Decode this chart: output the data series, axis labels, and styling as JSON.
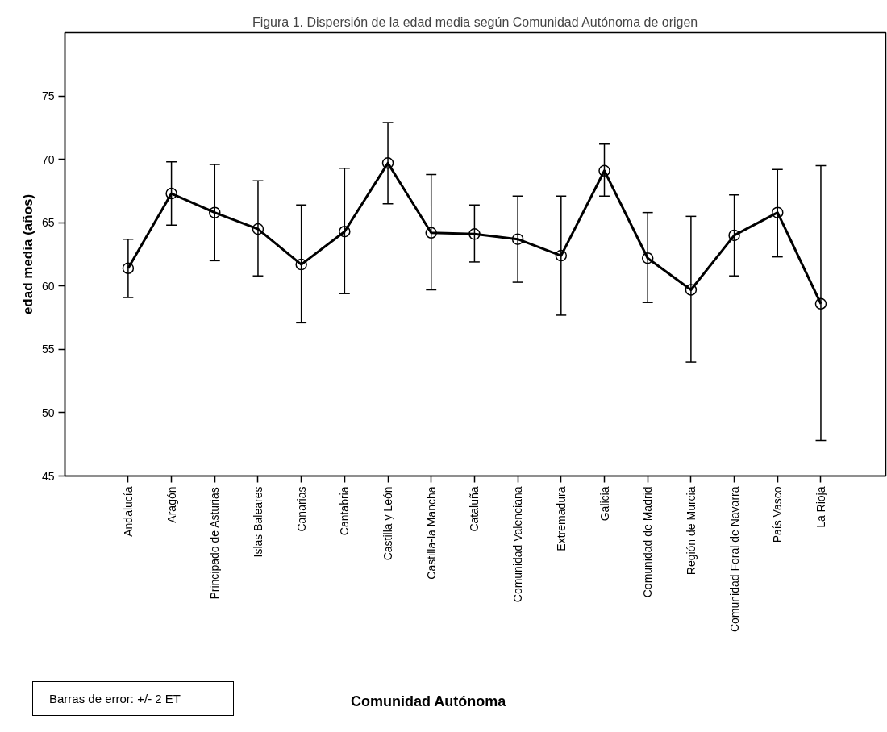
{
  "chart_data": {
    "type": "line",
    "title": "Figura 1. Dispersión de la edad media según Comunidad Autónoma de origen",
    "xlabel": "Comunidad Autónoma",
    "ylabel": "edad media (años)",
    "categories": [
      "Andalucía",
      "Aragón",
      "Principado de Asturias",
      "Islas Baleares",
      "Canarias",
      "Cantabria",
      "Castilla y León",
      "Castilla-la Mancha",
      "Cataluña",
      "Comunidad Valenciana",
      "Extremadura",
      "Galicia",
      "Comunidad de Madrid",
      "Región de Murcia",
      "Comunidad Foral de Navarra",
      "País Vasco",
      "La Rioja"
    ],
    "series": [
      {
        "color": "#000000",
        "values": [
          61.4,
          67.3,
          65.8,
          64.5,
          61.7,
          64.3,
          69.7,
          64.2,
          64.1,
          63.7,
          62.4,
          69.1,
          62.2,
          59.7,
          64.0,
          65.8,
          58.6
        ],
        "errors": [
          [
            59.1,
            63.7
          ],
          [
            64.8,
            69.8
          ],
          [
            62.0,
            69.6
          ],
          [
            60.8,
            68.3
          ],
          [
            57.1,
            66.4
          ],
          [
            59.4,
            69.3
          ],
          [
            66.5,
            72.9
          ],
          [
            59.7,
            68.8
          ],
          [
            61.9,
            66.4
          ],
          [
            60.3,
            67.1
          ],
          [
            57.7,
            67.1
          ],
          [
            67.1,
            71.2
          ],
          [
            58.7,
            65.8
          ],
          [
            54.0,
            65.5
          ],
          [
            60.8,
            67.2
          ],
          [
            62.3,
            69.2
          ],
          [
            47.8,
            69.5
          ]
        ]
      }
    ],
    "ylim": [
      45,
      80
    ],
    "yticks": [
      45,
      50,
      55,
      60,
      65,
      70,
      75
    ],
    "grid": false,
    "marker": "circle",
    "line_style": "solid",
    "annotations": [
      "Barras de error: +/- 2 ET"
    ]
  }
}
